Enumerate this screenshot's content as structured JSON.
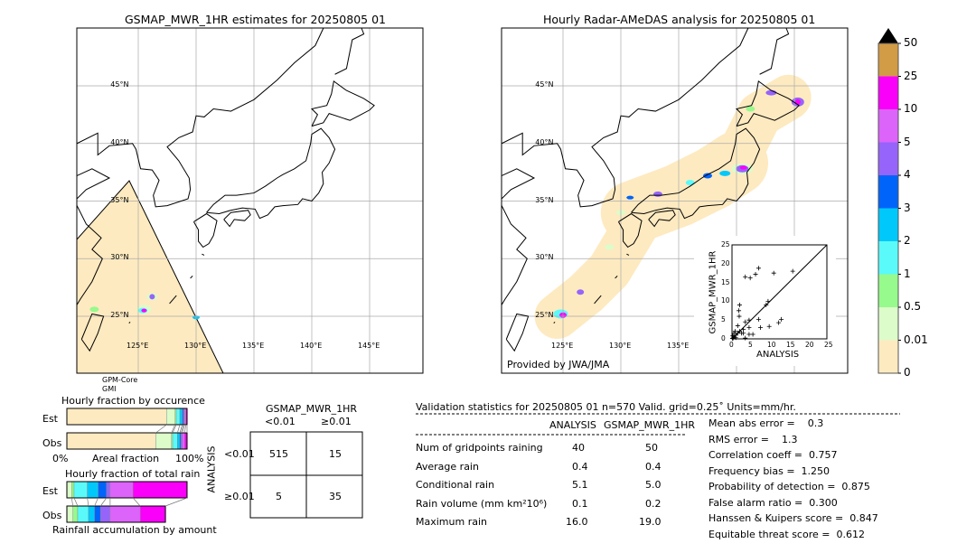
{
  "left_map": {
    "title": "GSMAP_MWR_1HR estimates for 20250805 01",
    "lat_labels": [
      "45°N",
      "40°N",
      "35°N",
      "30°N",
      "25°N"
    ],
    "lon_labels": [
      "125°E",
      "130°E",
      "135°E",
      "140°E",
      "145°E"
    ],
    "satellite": [
      "GPM-Core",
      "GMI"
    ]
  },
  "right_map": {
    "title": "Hourly Radar-AMeDAS analysis for 20250805 01",
    "lat_labels": [
      "45°N",
      "40°N",
      "35°N",
      "30°N",
      "25°N"
    ],
    "lon_labels": [
      "125°E",
      "130°E",
      "135°E"
    ],
    "credit": "Provided by JWA/JMA"
  },
  "colorbar": {
    "labels": [
      "0",
      "0.01",
      "0.5",
      "1",
      "2",
      "3",
      "4",
      "5",
      "10",
      "25",
      "50"
    ],
    "colors": [
      "#feeac0",
      "#dcfcca",
      "#96fa8c",
      "#5afafa",
      "#00c8fa",
      "#0064fa",
      "#9664fa",
      "#dc64fa",
      "#fa00fa",
      "#d29b46"
    ],
    "extend_color": "#000000"
  },
  "chart_data": [
    {
      "type": "scatter",
      "xlabel": "ANALYSIS",
      "ylabel": "GSMAP_MWR_1HR",
      "xlim": [
        0,
        25
      ],
      "ylim": [
        0,
        25
      ],
      "ticks": [
        "0",
        "5",
        "10",
        "15",
        "20",
        "25"
      ],
      "points": [
        [
          3.5,
          16.5
        ],
        [
          4.8,
          16.2
        ],
        [
          6.2,
          17.2
        ],
        [
          7,
          18.8
        ],
        [
          11,
          17.5
        ],
        [
          16,
          18
        ],
        [
          2,
          9
        ],
        [
          1.8,
          7.5
        ],
        [
          1.9,
          6
        ],
        [
          4.5,
          5
        ],
        [
          7,
          5.2
        ],
        [
          9.5,
          10
        ],
        [
          9,
          9
        ],
        [
          12.3,
          4.3
        ],
        [
          13,
          5.2
        ],
        [
          7.5,
          3
        ],
        [
          9.8,
          3.3
        ],
        [
          3.5,
          4.5
        ],
        [
          4.5,
          3
        ],
        [
          1.5,
          3.5
        ],
        [
          3,
          2.5
        ],
        [
          3,
          1.5
        ],
        [
          5.5,
          1.2
        ],
        [
          4.5,
          1.2
        ],
        [
          3.5,
          0.2
        ],
        [
          2,
          2
        ],
        [
          1,
          1
        ],
        [
          0.5,
          0.5
        ],
        [
          0.3,
          0.2
        ],
        [
          1.5,
          1.5
        ],
        [
          0.8,
          2
        ],
        [
          0.5,
          1.5
        ],
        [
          2.5,
          1.5
        ],
        [
          0.2,
          0.8
        ],
        [
          0.1,
          0.1
        ],
        [
          1,
          0.3
        ]
      ]
    },
    {
      "type": "bar",
      "title": "Hourly fraction by occurence",
      "xlabel": "Areal fraction",
      "xmin_label": "0%",
      "xmax_label": "100%",
      "categories": [
        "Est",
        "Obs"
      ],
      "series": [
        {
          "values": [
            0.83,
            0.74
          ]
        },
        {
          "values": [
            0.07,
            0.13
          ]
        },
        {
          "values": [
            0.01,
            0.01
          ]
        },
        {
          "values": [
            0.03,
            0.04
          ]
        },
        {
          "values": [
            0.02,
            0.02
          ]
        },
        {
          "values": [
            0.01,
            0.01
          ]
        },
        {
          "values": [
            0.01,
            0.01
          ]
        },
        {
          "values": [
            0.01,
            0.02
          ]
        },
        {
          "values": [
            0.01,
            0.02
          ]
        }
      ]
    },
    {
      "type": "bar",
      "title": "Hourly fraction of total rain",
      "xlabel": "Rainfall accumulation by amount",
      "categories": [
        "Est",
        "Obs"
      ],
      "series": [
        {
          "values": [
            0.04,
            0.05
          ]
        },
        {
          "values": [
            0.02,
            0.04
          ]
        },
        {
          "values": [
            0.11,
            0.09
          ]
        },
        {
          "values": [
            0.09,
            0.05
          ]
        },
        {
          "values": [
            0.07,
            0.05
          ]
        },
        {
          "values": [
            0.03,
            0.08
          ]
        },
        {
          "values": [
            0.19,
            0.25
          ]
        },
        {
          "values": [
            0.45,
            0.21
          ]
        }
      ]
    }
  ],
  "contingency": {
    "title": "GSMAP_MWR_1HR",
    "col_labels": [
      "<0.01",
      "≥0.01"
    ],
    "row_title": "ANALYSIS",
    "row_labels": [
      "<0.01",
      "≥0.01"
    ],
    "cells": [
      [
        "515",
        "15"
      ],
      [
        "5",
        "35"
      ]
    ]
  },
  "stats": {
    "header": "Validation statistics for 20250805 01  n=570 Valid. grid=0.25˚ Units=mm/hr.",
    "columns": [
      "ANALYSIS",
      "GSMAP_MWR_1HR"
    ],
    "rows": [
      {
        "label": "Num of gridpoints raining",
        "a": "40",
        "g": "50"
      },
      {
        "label": "Average rain",
        "a": "0.4",
        "g": "0.4"
      },
      {
        "label": "Conditional rain",
        "a": "5.1",
        "g": "5.0"
      },
      {
        "label": "Rain volume (mm km²10⁶)",
        "a": "0.1",
        "g": "0.2"
      },
      {
        "label": "Maximum rain",
        "a": "16.0",
        "g": "19.0"
      }
    ],
    "scores": [
      "Mean abs error =    0.3",
      "RMS error =    1.3",
      "Correlation coeff =  0.757",
      "Frequency bias =  1.250",
      "Probability of detection =  0.875",
      "False alarm ratio =  0.300",
      "Hanssen & Kuipers score =  0.847",
      "Equitable threat score =  0.612"
    ]
  }
}
